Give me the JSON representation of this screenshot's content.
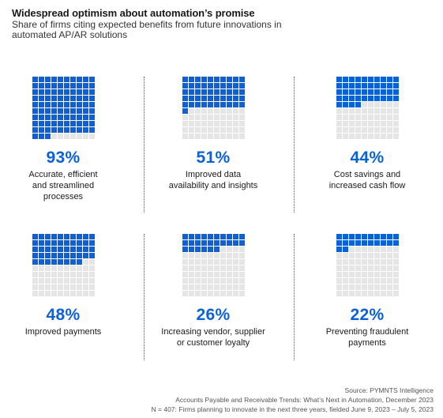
{
  "header": {
    "title": "Widespread optimism about automation’s promise",
    "subtitle": "Share of firms citing expected benefits from future innovations in automated AP/AR solutions"
  },
  "colors": {
    "filled": "#0b61d8",
    "empty": "#e5e5e5"
  },
  "chart_data": {
    "type": "waffle",
    "unit": "%",
    "items": [
      {
        "value": 93,
        "value_label": "93%",
        "label": "Accurate, efficient\nand streamlined\nprocesses"
      },
      {
        "value": 51,
        "value_label": "51%",
        "label": "Improved data\navailability and insights"
      },
      {
        "value": 44,
        "value_label": "44%",
        "label": "Cost savings and\nincreased cash flow"
      },
      {
        "value": 48,
        "value_label": "48%",
        "label": "Improved payments"
      },
      {
        "value": 26,
        "value_label": "26%",
        "label": "Increasing vendor, supplier\nor customer loyalty"
      },
      {
        "value": 22,
        "value_label": "22%",
        "label": "Preventing fraudulent\npayments"
      }
    ]
  },
  "footer": {
    "source": "Source: PYMNTS Intelligence",
    "report": "Accounts Payable and Receivable Trends: What’s Next in Automation, December 2023",
    "note": "N = 407: Firms planning to innovate in the next three years, fielded June 9, 2023 – July 5, 2023"
  }
}
